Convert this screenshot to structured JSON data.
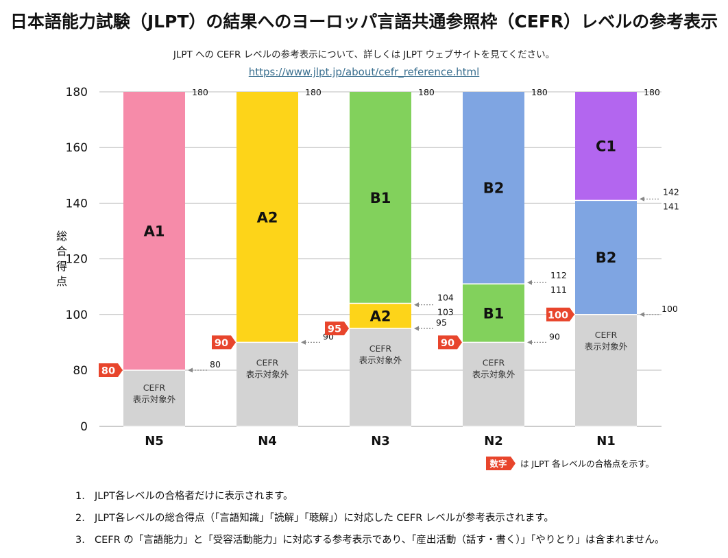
{
  "title": "日本語能力試験（JLPT）の結果へのヨーロッパ言語共通参照枠（CEFR）レベルの参考表示",
  "subtitle": "JLPT への CEFR レベルの参考表示について、詳しくは JLPT ウェブサイトを見てください。",
  "link_text": "https://www.jlpt.jp/about/cefr_reference.html",
  "colors": {
    "A1": "#f68ba9",
    "A2": "#fdd419",
    "B1": "#82d15c",
    "B2": "#7fa5e2",
    "C1": "#b366ef",
    "none": "#d3d3d3",
    "pass_marker": "#e8452c",
    "grid": "#bbbbbb"
  },
  "chart_data": {
    "type": "bar",
    "stacked": true,
    "ylabel": "総合得点",
    "ylim": [
      0,
      180
    ],
    "yticks": [
      0,
      80,
      100,
      120,
      140,
      160,
      180
    ],
    "grid": true,
    "legend_note": {
      "badge": "数字",
      "text": "は JLPT 各レベルの合格点を示す。"
    },
    "categories": [
      "N5",
      "N4",
      "N3",
      "N2",
      "N1"
    ],
    "bars": [
      {
        "level": "N5",
        "pass_mark": 80,
        "segments": [
          {
            "from": 0,
            "to": 80,
            "label": "CEFR\n表示対象外",
            "band": "none"
          },
          {
            "from": 80,
            "to": 180,
            "label": "A1",
            "band": "A1"
          }
        ],
        "boundary_labels": [
          {
            "lines": [
              "80"
            ],
            "y": 80
          },
          {
            "lines": [
              "180"
            ],
            "y": 180
          }
        ]
      },
      {
        "level": "N4",
        "pass_mark": 90,
        "segments": [
          {
            "from": 0,
            "to": 90,
            "label": "CEFR\n表示対象外",
            "band": "none"
          },
          {
            "from": 90,
            "to": 180,
            "label": "A2",
            "band": "A2"
          }
        ],
        "boundary_labels": [
          {
            "lines": [
              "90"
            ],
            "y": 90
          },
          {
            "lines": [
              "180"
            ],
            "y": 180
          }
        ]
      },
      {
        "level": "N3",
        "pass_mark": 95,
        "segments": [
          {
            "from": 0,
            "to": 95,
            "label": "CEFR\n表示対象外",
            "band": "none"
          },
          {
            "from": 95,
            "to": 104,
            "label": "A2",
            "band": "A2"
          },
          {
            "from": 104,
            "to": 180,
            "label": "B1",
            "band": "B1"
          }
        ],
        "boundary_labels": [
          {
            "lines": [
              "95"
            ],
            "y": 95
          },
          {
            "lines": [
              "104",
              "103"
            ],
            "y": 103.5
          },
          {
            "lines": [
              "180"
            ],
            "y": 180
          }
        ]
      },
      {
        "level": "N2",
        "pass_mark": 90,
        "segments": [
          {
            "from": 0,
            "to": 90,
            "label": "CEFR\n表示対象外",
            "band": "none"
          },
          {
            "from": 90,
            "to": 111,
            "label": "B1",
            "band": "B1"
          },
          {
            "from": 111,
            "to": 180,
            "label": "B2",
            "band": "B2"
          }
        ],
        "boundary_labels": [
          {
            "lines": [
              "90"
            ],
            "y": 90
          },
          {
            "lines": [
              "112",
              "111"
            ],
            "y": 111.5
          },
          {
            "lines": [
              "180"
            ],
            "y": 180
          }
        ]
      },
      {
        "level": "N1",
        "pass_mark": 100,
        "segments": [
          {
            "from": 0,
            "to": 100,
            "label": "CEFR\n表示対象外",
            "band": "none"
          },
          {
            "from": 100,
            "to": 141,
            "label": "B2",
            "band": "B2"
          },
          {
            "from": 141,
            "to": 180,
            "label": "C1",
            "band": "C1"
          }
        ],
        "boundary_labels": [
          {
            "lines": [
              "100"
            ],
            "y": 100
          },
          {
            "lines": [
              "142",
              "141"
            ],
            "y": 141.5
          },
          {
            "lines": [
              "180"
            ],
            "y": 180
          }
        ]
      }
    ]
  },
  "notes": [
    {
      "num": "1.",
      "text": "JLPT各レベルの合格者だけに表示されます。"
    },
    {
      "num": "2.",
      "text": "JLPT各レベルの総合得点（「言語知識」「読解」「聴解」）に対応した CEFR レベルが参考表示されます。"
    },
    {
      "num": "3.",
      "text": "CEFR の「言語能力」と「受容活動能力」に対応する参考表示であり、「産出活動（話す・書く）」「やりとり」は含まれません。"
    }
  ]
}
